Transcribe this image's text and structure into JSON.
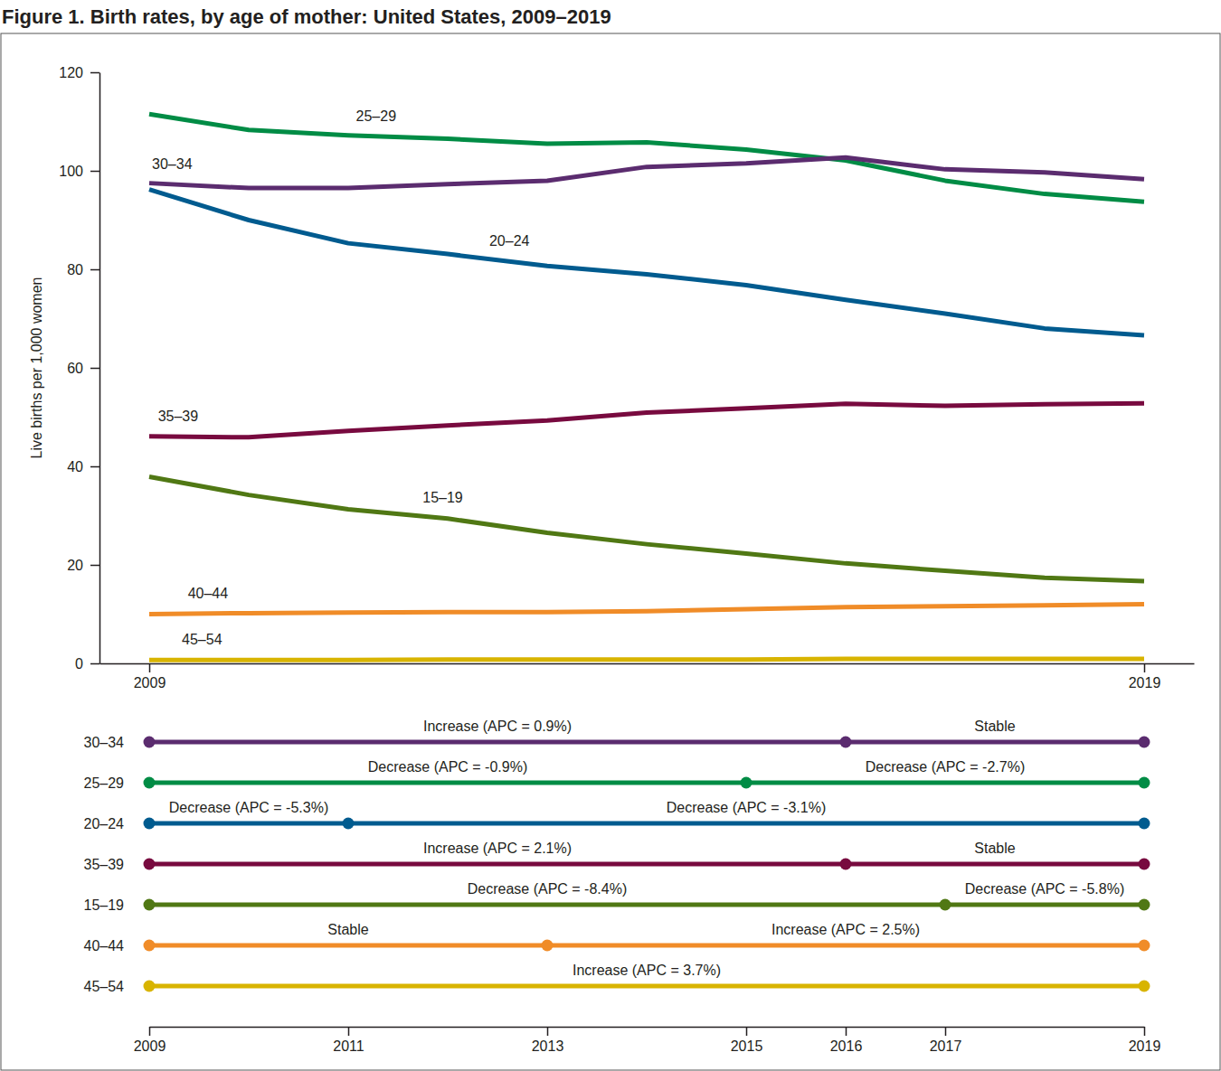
{
  "chart_data": [
    {
      "type": "line",
      "title": "Figure 1. Birth rates, by age of mother: United States, 2009–2019",
      "y_label": "Live births per 1,000 women",
      "x": [
        2009,
        2010,
        2011,
        2012,
        2013,
        2014,
        2015,
        2016,
        2017,
        2018,
        2019
      ],
      "xlim": [
        2008.5,
        2019.5
      ],
      "xticks": [
        2009,
        2019
      ],
      "ylim": [
        0,
        120
      ],
      "yticks": [
        0,
        20,
        40,
        60,
        80,
        100,
        120
      ],
      "grid": false,
      "series": [
        {
          "name": "30–34",
          "color": "#5b2c6f",
          "values": [
            97.5,
            96.5,
            96.5,
            97.3,
            98.0,
            100.8,
            101.5,
            102.7,
            100.3,
            99.7,
            98.3
          ]
        },
        {
          "name": "25–29",
          "color": "#008c45",
          "values": [
            111.5,
            108.3,
            107.2,
            106.5,
            105.5,
            105.8,
            104.3,
            102.1,
            98.0,
            95.3,
            93.7
          ]
        },
        {
          "name": "20–24",
          "color": "#005b8f",
          "values": [
            96.2,
            90.0,
            85.3,
            83.1,
            80.7,
            79.0,
            76.8,
            73.8,
            71.0,
            68.0,
            66.6
          ]
        },
        {
          "name": "35–39",
          "color": "#780a3f",
          "values": [
            46.1,
            45.9,
            47.2,
            48.3,
            49.3,
            50.9,
            51.8,
            52.7,
            52.3,
            52.6,
            52.8
          ]
        },
        {
          "name": "15–19",
          "color": "#507814",
          "values": [
            37.9,
            34.2,
            31.3,
            29.4,
            26.5,
            24.2,
            22.3,
            20.3,
            18.8,
            17.4,
            16.7
          ]
        },
        {
          "name": "40–44",
          "color": "#f08c28",
          "values": [
            10.0,
            10.2,
            10.3,
            10.4,
            10.4,
            10.6,
            11.0,
            11.4,
            11.6,
            11.8,
            12.0
          ]
        },
        {
          "name": "45–54",
          "color": "#d8b400",
          "values": [
            0.7,
            0.7,
            0.7,
            0.8,
            0.8,
            0.8,
            0.8,
            0.9,
            0.9,
            0.9,
            0.9
          ]
        }
      ]
    },
    {
      "type": "timeline",
      "categories": [
        "30–34",
        "25–29",
        "20–24",
        "35–39",
        "15–19",
        "40–44",
        "45–54"
      ],
      "colors": [
        "#5b2c6f",
        "#008c45",
        "#005b8f",
        "#780a3f",
        "#507814",
        "#f08c28",
        "#d8b400"
      ],
      "segments": [
        [
          {
            "start": 2009,
            "end": 2016,
            "label": "Increase (APC = 0.9%)"
          },
          {
            "start": 2016,
            "end": 2019,
            "label": "Stable"
          }
        ],
        [
          {
            "start": 2009,
            "end": 2015,
            "label": "Decrease (APC = -0.9%)"
          },
          {
            "start": 2015,
            "end": 2019,
            "label": "Decrease (APC = -2.7%)"
          }
        ],
        [
          {
            "start": 2009,
            "end": 2011,
            "label": "Decrease (APC = -5.3%)"
          },
          {
            "start": 2011,
            "end": 2019,
            "label": "Decrease (APC = -3.1%)"
          }
        ],
        [
          {
            "start": 2009,
            "end": 2016,
            "label": "Increase (APC = 2.1%)"
          },
          {
            "start": 2016,
            "end": 2019,
            "label": "Stable"
          }
        ],
        [
          {
            "start": 2009,
            "end": 2017,
            "label": "Decrease (APC = -8.4%)"
          },
          {
            "start": 2017,
            "end": 2019,
            "label": "Decrease (APC = -5.8%)"
          }
        ],
        [
          {
            "start": 2009,
            "end": 2013,
            "label": "Stable"
          },
          {
            "start": 2013,
            "end": 2019,
            "label": "Increase (APC = 2.5%)"
          }
        ],
        [
          {
            "start": 2009,
            "end": 2019,
            "label": "Increase (APC = 3.7%)"
          }
        ]
      ],
      "xlim": [
        2009,
        2019
      ],
      "xticks": [
        2009,
        2011,
        2013,
        2015,
        2016,
        2017,
        2019
      ]
    }
  ]
}
